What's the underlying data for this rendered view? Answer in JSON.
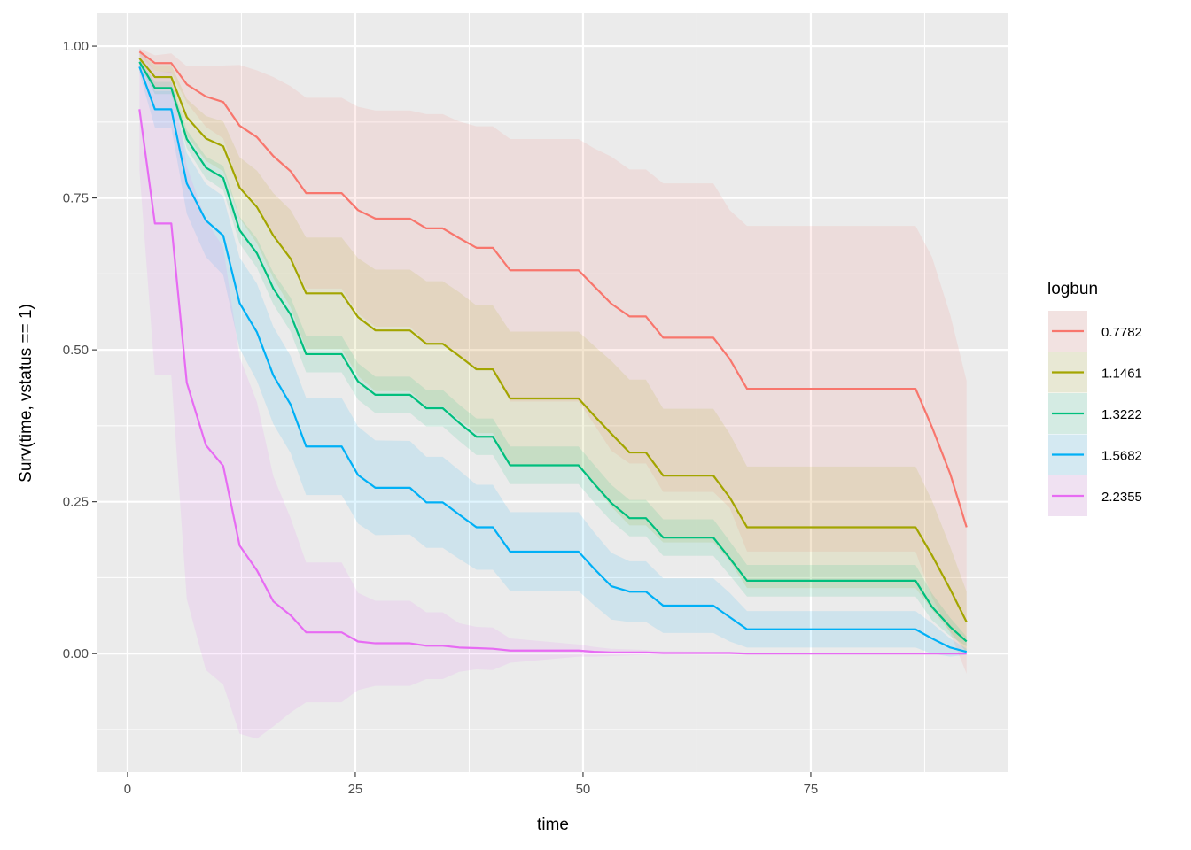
{
  "chart_data": {
    "type": "line",
    "title": "",
    "xlabel": "time",
    "ylabel": "Surv(time, vstatus == 1)",
    "xlim": [
      -3.4,
      96.6
    ],
    "ylim": [
      -0.195,
      1.054
    ],
    "xticks": [
      0,
      25,
      50,
      75
    ],
    "xtick_labels": [
      "0",
      "25",
      "50",
      "75"
    ],
    "yticks": [
      0,
      0.25,
      0.5,
      0.75,
      1
    ],
    "ytick_labels": [
      "0.00",
      "0.25",
      "0.50",
      "0.75",
      "1.00"
    ],
    "grid": true,
    "legend": {
      "title": "logbun",
      "position": "right"
    },
    "x": [
      1.3,
      3.0,
      4.8,
      6.5,
      8.6,
      10.5,
      12.3,
      14.2,
      16.0,
      17.9,
      19.6,
      23.5,
      25.3,
      27.2,
      31.0,
      32.8,
      34.6,
      36.4,
      38.3,
      40.1,
      42.0,
      49.5,
      51.2,
      53.1,
      55.1,
      56.9,
      58.8,
      64.3,
      66.1,
      68.0,
      86.5,
      88.3,
      90.3,
      92.1
    ],
    "series": [
      {
        "name": "0.7782",
        "color": "#F8766D",
        "values": [
          0.991,
          0.972,
          0.972,
          0.937,
          0.917,
          0.908,
          0.869,
          0.85,
          0.819,
          0.794,
          0.758,
          0.758,
          0.73,
          0.716,
          0.716,
          0.7,
          0.7,
          0.684,
          0.668,
          0.668,
          0.631,
          0.631,
          0.605,
          0.576,
          0.555,
          0.555,
          0.52,
          0.52,
          0.485,
          0.436,
          0.436,
          0.373,
          0.296,
          0.208
        ],
        "ci_halfwidth": [
          0.005,
          0.013,
          0.016,
          0.03,
          0.05,
          0.06,
          0.1,
          0.11,
          0.13,
          0.14,
          0.157,
          0.157,
          0.17,
          0.178,
          0.178,
          0.188,
          0.188,
          0.192,
          0.2,
          0.2,
          0.216,
          0.216,
          0.227,
          0.242,
          0.242,
          0.242,
          0.254,
          0.254,
          0.245,
          0.268,
          0.268,
          0.28,
          0.262,
          0.241
        ]
      },
      {
        "name": "1.1461",
        "color": "#A3A500",
        "values": [
          0.98,
          0.949,
          0.949,
          0.883,
          0.848,
          0.835,
          0.767,
          0.735,
          0.688,
          0.65,
          0.593,
          0.593,
          0.554,
          0.532,
          0.532,
          0.51,
          0.51,
          0.49,
          0.468,
          0.468,
          0.42,
          0.42,
          0.392,
          0.362,
          0.331,
          0.331,
          0.293,
          0.293,
          0.257,
          0.208,
          0.208,
          0.162,
          0.106,
          0.052
        ],
        "ci_halfwidth": [
          0.01,
          0.02,
          0.02,
          0.03,
          0.037,
          0.041,
          0.05,
          0.06,
          0.07,
          0.08,
          0.092,
          0.092,
          0.097,
          0.1,
          0.1,
          0.103,
          0.103,
          0.105,
          0.105,
          0.105,
          0.11,
          0.11,
          0.115,
          0.12,
          0.12,
          0.12,
          0.11,
          0.11,
          0.105,
          0.1,
          0.1,
          0.09,
          0.07,
          0.05
        ]
      },
      {
        "name": "1.3222",
        "color": "#00BF7D",
        "values": [
          0.974,
          0.931,
          0.931,
          0.847,
          0.8,
          0.783,
          0.697,
          0.659,
          0.601,
          0.558,
          0.493,
          0.493,
          0.448,
          0.426,
          0.426,
          0.404,
          0.404,
          0.38,
          0.357,
          0.357,
          0.31,
          0.31,
          0.28,
          0.248,
          0.223,
          0.223,
          0.191,
          0.191,
          0.157,
          0.12,
          0.12,
          0.077,
          0.044,
          0.02
        ],
        "ci_halfwidth": [
          0.005,
          0.01,
          0.01,
          0.015,
          0.018,
          0.02,
          0.022,
          0.024,
          0.026,
          0.028,
          0.03,
          0.03,
          0.03,
          0.03,
          0.03,
          0.03,
          0.03,
          0.03,
          0.03,
          0.03,
          0.031,
          0.031,
          0.031,
          0.03,
          0.03,
          0.03,
          0.03,
          0.03,
          0.028,
          0.026,
          0.026,
          0.022,
          0.015,
          0.008
        ]
      },
      {
        "name": "1.5682",
        "color": "#00B0F6",
        "values": [
          0.966,
          0.896,
          0.896,
          0.774,
          0.713,
          0.688,
          0.577,
          0.529,
          0.458,
          0.41,
          0.341,
          0.341,
          0.294,
          0.273,
          0.273,
          0.249,
          0.249,
          0.229,
          0.208,
          0.208,
          0.168,
          0.168,
          0.14,
          0.111,
          0.102,
          0.102,
          0.079,
          0.079,
          0.06,
          0.04,
          0.04,
          0.025,
          0.01,
          0.003
        ],
        "ci_halfwidth": [
          0.01,
          0.03,
          0.03,
          0.05,
          0.06,
          0.065,
          0.075,
          0.08,
          0.08,
          0.08,
          0.08,
          0.08,
          0.08,
          0.078,
          0.077,
          0.075,
          0.075,
          0.073,
          0.07,
          0.07,
          0.065,
          0.065,
          0.06,
          0.055,
          0.05,
          0.05,
          0.045,
          0.045,
          0.04,
          0.03,
          0.03,
          0.025,
          0.015,
          0.005
        ]
      },
      {
        "name": "2.2355",
        "color": "#E76BF3",
        "values": [
          0.896,
          0.708,
          0.708,
          0.446,
          0.343,
          0.309,
          0.178,
          0.137,
          0.086,
          0.063,
          0.035,
          0.035,
          0.02,
          0.017,
          0.017,
          0.013,
          0.013,
          0.01,
          0.009,
          0.008,
          0.005,
          0.005,
          0.003,
          0.002,
          0.002,
          0.002,
          0.001,
          0.001,
          0.001,
          0.0,
          0.0,
          0.0,
          0.0,
          0.0
        ],
        "ci_halfwidth": [
          0.1,
          0.25,
          0.25,
          0.356,
          0.37,
          0.36,
          0.31,
          0.277,
          0.206,
          0.16,
          0.115,
          0.115,
          0.08,
          0.07,
          0.07,
          0.055,
          0.055,
          0.04,
          0.035,
          0.035,
          0.02,
          0.01,
          0.008,
          0.006,
          0.005,
          0.004,
          0.003,
          0.002,
          0.002,
          0.001,
          0.001,
          0.001,
          0.001,
          0.001
        ]
      }
    ]
  }
}
